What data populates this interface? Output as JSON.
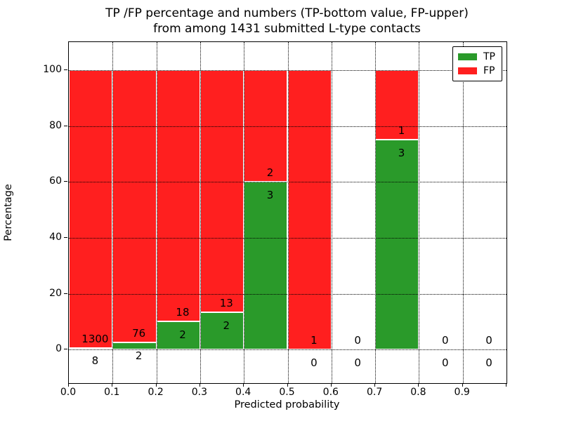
{
  "chart_data": {
    "type": "bar",
    "stacked": true,
    "title_line1": "TP /FP percentage and numbers (TP-bottom value, FP-upper)",
    "title_line2": "from among 1431 submitted L-type contacts",
    "xlabel": "Predicted probability",
    "ylabel": "Percentage",
    "total_contacts": 1431,
    "bin_width": 0.1,
    "bin_starts": [
      0.0,
      0.1,
      0.2,
      0.3,
      0.4,
      0.5,
      0.6,
      0.7,
      0.8,
      0.9
    ],
    "series": [
      {
        "name": "TP",
        "color": "#2a9a2a",
        "counts": [
          8,
          2,
          2,
          2,
          3,
          0,
          0,
          3,
          0,
          0
        ]
      },
      {
        "name": "FP",
        "color": "#ff1f1f",
        "counts": [
          1300,
          76,
          18,
          13,
          2,
          1,
          0,
          1,
          0,
          0
        ]
      }
    ],
    "xlim": [
      0.0,
      1.0
    ],
    "ylim": [
      -12,
      110
    ],
    "xticks": [
      {
        "value": 0.0,
        "label": "0.0"
      },
      {
        "value": 0.1,
        "label": "0.1"
      },
      {
        "value": 0.2,
        "label": "0.2"
      },
      {
        "value": 0.3,
        "label": "0.3"
      },
      {
        "value": 0.4,
        "label": "0.4"
      },
      {
        "value": 0.5,
        "label": "0.5"
      },
      {
        "value": 0.6,
        "label": "0.6"
      },
      {
        "value": 0.7,
        "label": "0.7"
      },
      {
        "value": 0.8,
        "label": "0.8"
      },
      {
        "value": 0.9,
        "label": "0.9"
      },
      {
        "value": 1.0,
        "label": ""
      }
    ],
    "yticks": [
      {
        "value": 0,
        "label": "0"
      },
      {
        "value": 20,
        "label": "20"
      },
      {
        "value": 40,
        "label": "40"
      },
      {
        "value": 60,
        "label": "60"
      },
      {
        "value": 80,
        "label": "80"
      },
      {
        "value": 100,
        "label": "100"
      }
    ],
    "grid_style": "dotted",
    "grid_color": "#000000",
    "legend": {
      "position": "upper right",
      "entries": [
        "TP",
        "FP"
      ]
    }
  }
}
